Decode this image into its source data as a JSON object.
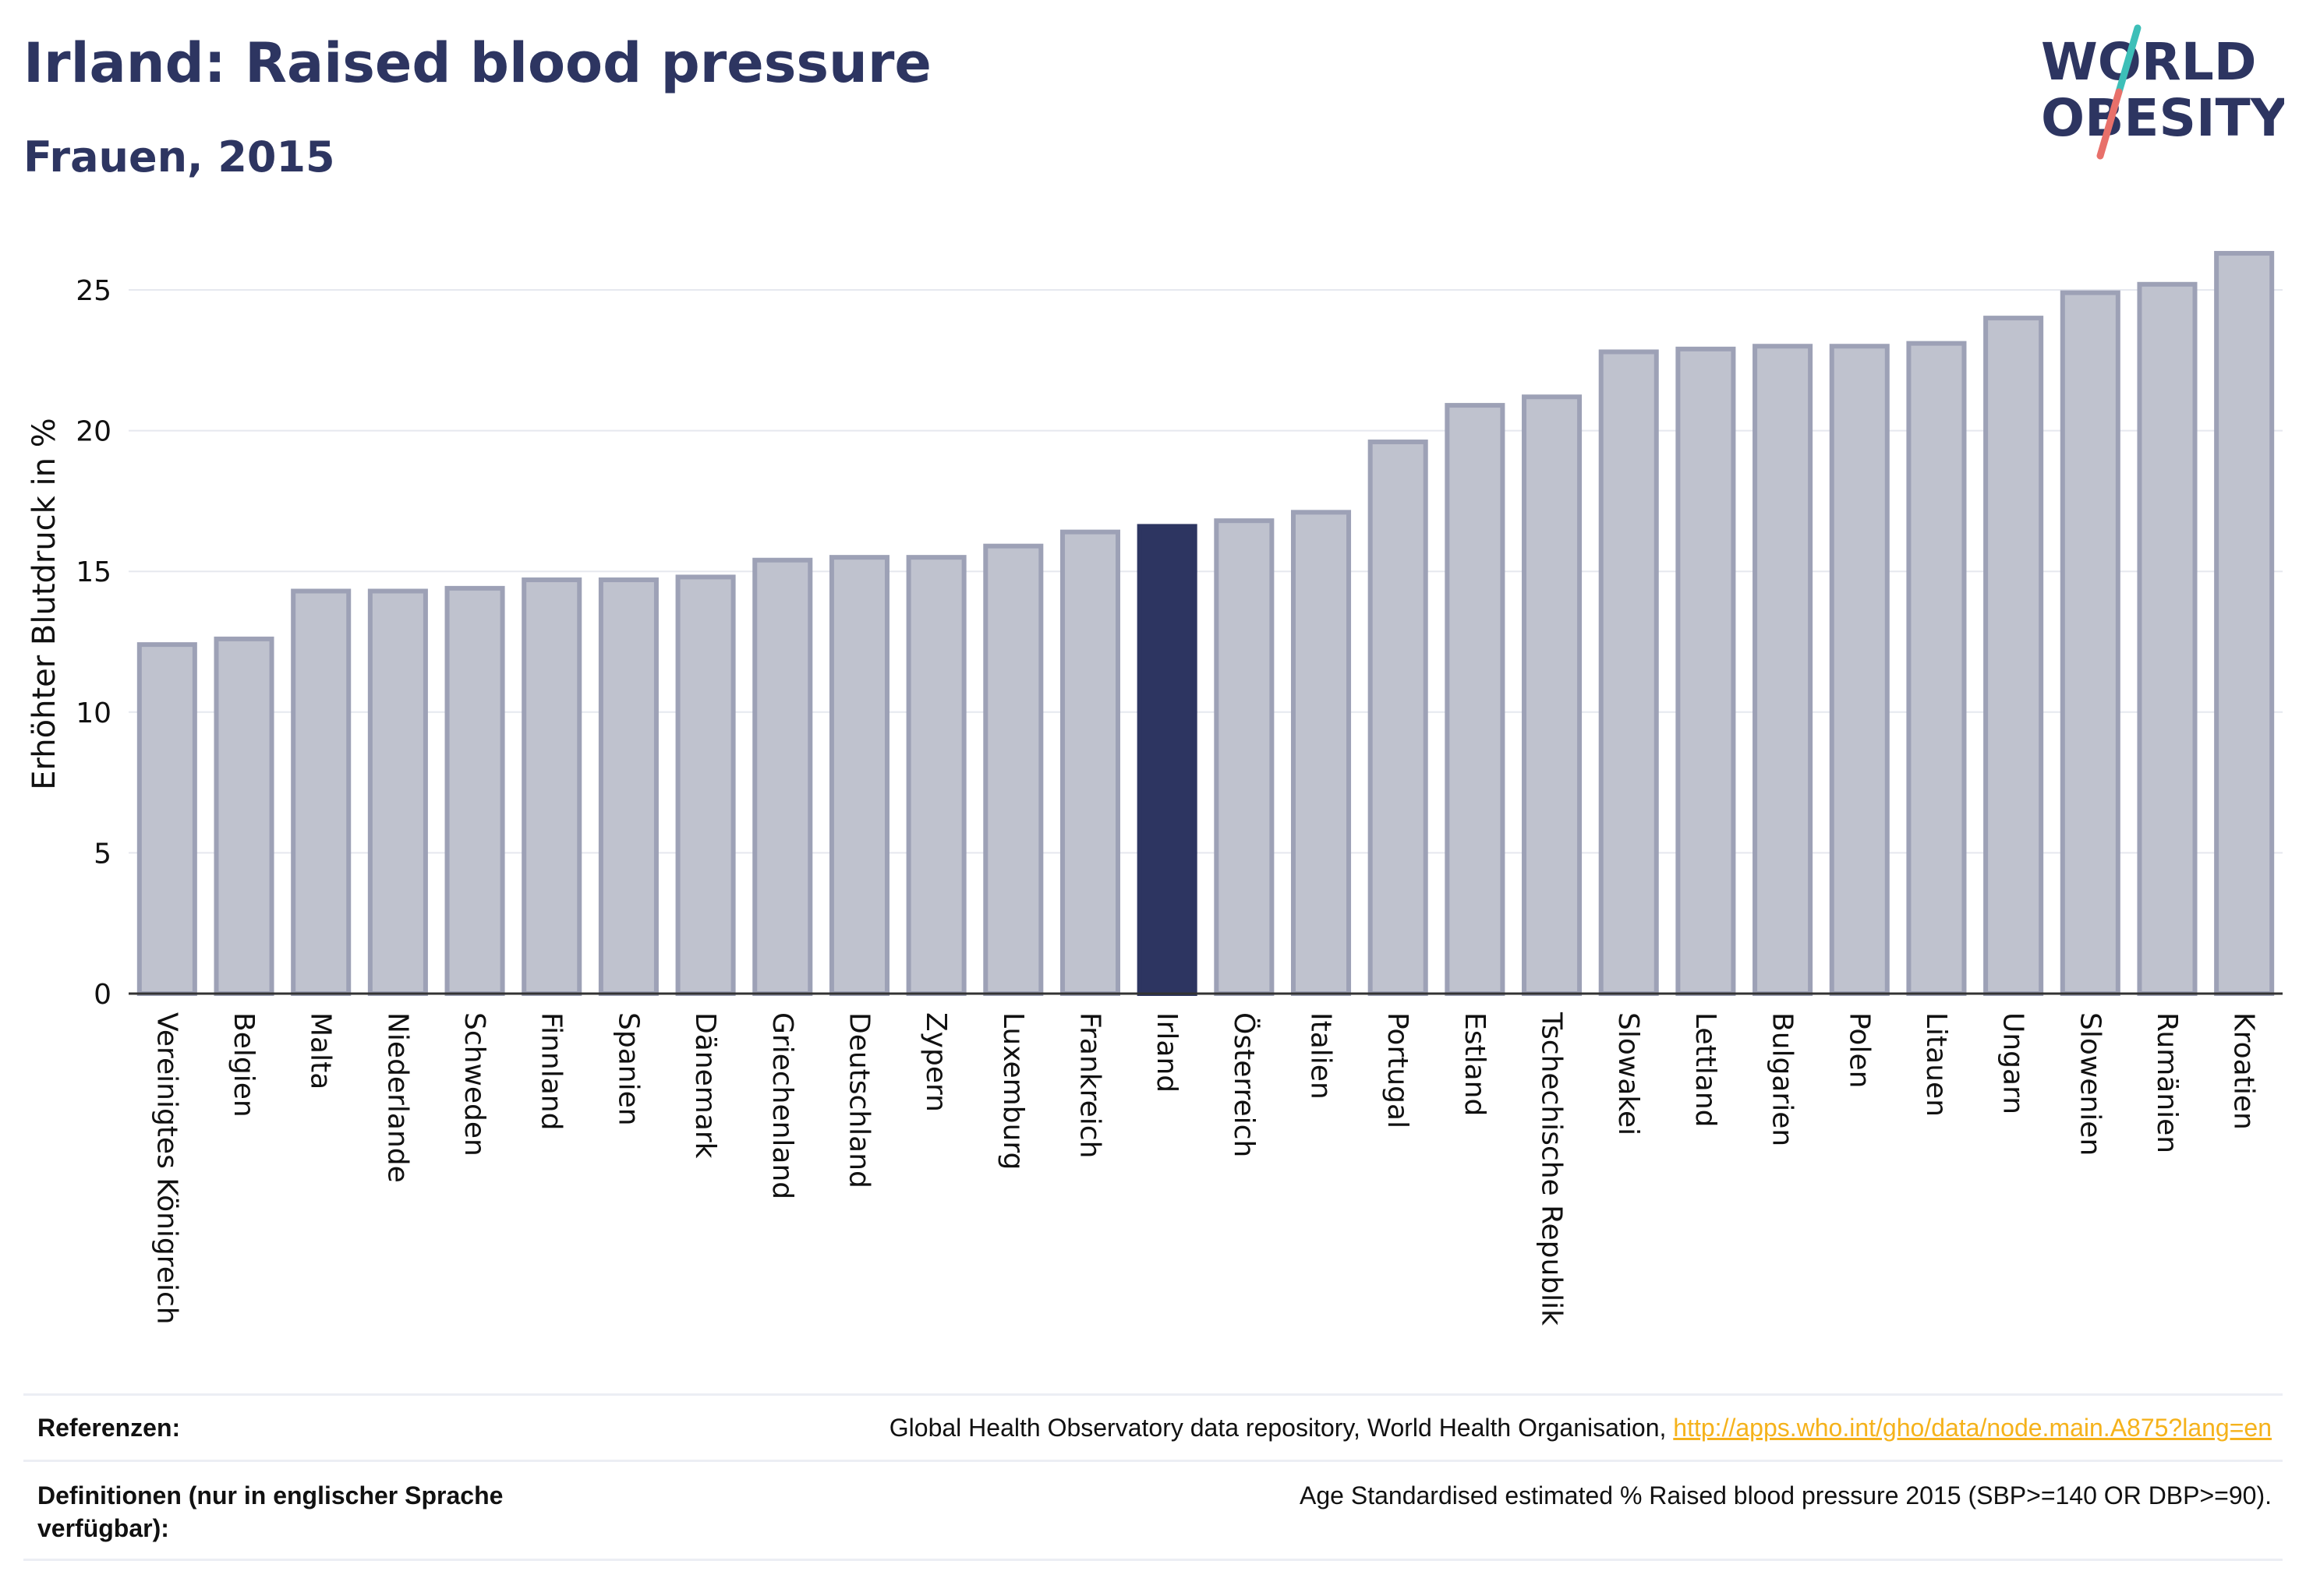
{
  "header": {
    "title": "Irland: Raised blood pressure",
    "subtitle": "Frauen, 2015"
  },
  "logo": {
    "line1": "WORLD",
    "line2": "OBESITY",
    "text_color": "#2d3561",
    "slash_top_color": "#3dbfb8",
    "slash_bottom_color": "#e8706a"
  },
  "chart_data": {
    "type": "bar",
    "ylabel": "Erhöhter Blutdruck in %",
    "xlabel": "",
    "ylim": [
      0,
      27
    ],
    "yticks": [
      0,
      5,
      10,
      15,
      20,
      25
    ],
    "grid": true,
    "highlight": "Irland",
    "colors": {
      "bar": "#bfc2ce",
      "bar_border": "#9da1b6",
      "highlight": "#2d3561"
    },
    "categories": [
      "Vereinigtes Königreich",
      "Belgien",
      "Malta",
      "Niederlande",
      "Schweden",
      "Finnland",
      "Spanien",
      "Dänemark",
      "Griechenland",
      "Deutschland",
      "Zypern",
      "Luxemburg",
      "Frankreich",
      "Irland",
      "Österreich",
      "Italien",
      "Portugal",
      "Estland",
      "Tschechische Republik",
      "Slowakei",
      "Lettland",
      "Bulgarien",
      "Polen",
      "Litauen",
      "Ungarn",
      "Slowenien",
      "Rumänien",
      "Kroatien"
    ],
    "values": [
      12.4,
      12.6,
      14.3,
      14.3,
      14.4,
      14.7,
      14.7,
      14.8,
      15.4,
      15.5,
      15.5,
      15.9,
      16.4,
      16.6,
      16.8,
      17.1,
      19.6,
      20.9,
      21.2,
      22.8,
      22.9,
      23.0,
      23.0,
      23.1,
      24.0,
      24.9,
      25.2,
      26.3
    ]
  },
  "references": {
    "label": "Referenzen:",
    "text": "Global Health Observatory data repository, World Health Organisation, ",
    "link": "http://apps.who.int/gho/data/node.main.A875?lang=en"
  },
  "definitions": {
    "label": "Definitionen (nur in englischer Sprache verfügbar):",
    "text": "Age Standardised estimated % Raised blood pressure 2015 (SBP>=140 OR DBP>=90)."
  }
}
